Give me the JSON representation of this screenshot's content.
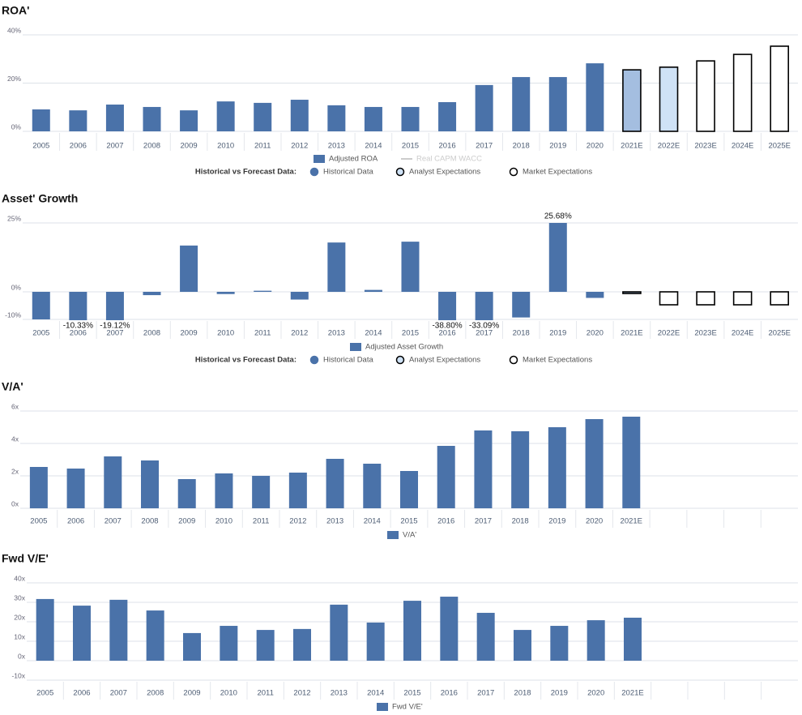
{
  "chart_data": {
    "type": "dashboard",
    "charts": [
      {
        "type": "bar",
        "title": "ROA'",
        "categories": [
          "2005",
          "2006",
          "2007",
          "2008",
          "2009",
          "2010",
          "2011",
          "2012",
          "2013",
          "2014",
          "2015",
          "2016",
          "2017",
          "2018",
          "2019",
          "2020",
          "2021E",
          "2022E",
          "2023E",
          "2024E",
          "2025E"
        ],
        "series": [
          {
            "name": "Adjusted ROA",
            "color": "#4a72a9",
            "values": [
              9.1,
              8.7,
              11.1,
              10.1,
              8.7,
              12.4,
              11.8,
              13.1,
              10.8,
              10.1,
              10.1,
              12.1,
              19.2,
              22.5,
              22.5,
              28.2,
              25.5,
              26.6,
              29.2,
              31.9,
              35.3
            ],
            "colors": [
              "#4a72a9",
              "#4a72a9",
              "#4a72a9",
              "#4a72a9",
              "#4a72a9",
              "#4a72a9",
              "#4a72a9",
              "#4a72a9",
              "#4a72a9",
              "#4a72a9",
              "#4a72a9",
              "#4a72a9",
              "#4a72a9",
              "#4a72a9",
              "#4a72a9",
              "#4a72a9",
              "#a4bee0",
              "#cfe2f6",
              "#ffffff",
              "#ffffff",
              "#ffffff"
            ],
            "outline": [
              false,
              false,
              false,
              false,
              false,
              false,
              false,
              false,
              false,
              false,
              false,
              false,
              false,
              false,
              false,
              false,
              true,
              true,
              true,
              true,
              true
            ]
          }
        ],
        "extra_legend": [
          {
            "name": "Real CAPM WACC",
            "color": "#cccccc"
          }
        ],
        "ylim": [
          0,
          40
        ],
        "yticks": [
          {
            "value": 0,
            "label": "0%"
          },
          {
            "value": 20,
            "label": "20%"
          },
          {
            "value": 40,
            "label": "40%"
          }
        ],
        "grid": true,
        "forecast_legend": {
          "title": "Historical vs Forecast Data:",
          "items": [
            {
              "name": "Historical Data",
              "fill": "#4a72a9",
              "stroke": "#4a72a9"
            },
            {
              "name": "Analyst Expectations",
              "fill": "#cfe2f6",
              "stroke": "#000000"
            },
            {
              "name": "Market Expectations",
              "fill": "#ffffff",
              "stroke": "#000000"
            }
          ]
        }
      },
      {
        "type": "bar",
        "title": "Asset' Growth",
        "categories": [
          "2005",
          "2006",
          "2007",
          "2008",
          "2009",
          "2010",
          "2011",
          "2012",
          "2013",
          "2014",
          "2015",
          "2016",
          "2017",
          "2018",
          "2019",
          "2020",
          "2021E",
          "2022E",
          "2023E",
          "2024E",
          "2025E"
        ],
        "series": [
          {
            "name": "Adjusted Asset Growth",
            "color": "#4a72a9",
            "values": [
              -10.0,
              -10.33,
              -19.12,
              -1.2,
              16.8,
              -0.8,
              0.4,
              -2.8,
              17.9,
              0.7,
              18.2,
              -38.8,
              -33.09,
              -9.3,
              25.68,
              -2.2,
              -0.6,
              -4.7,
              -4.7,
              -4.7,
              -4.7
            ],
            "value_labels": [
              null,
              "-10.33%",
              "-19.12%",
              null,
              null,
              null,
              null,
              null,
              null,
              null,
              null,
              "-38.80%",
              "-33.09%",
              null,
              "25.68%",
              null,
              null,
              null,
              null,
              null,
              null
            ],
            "colors": [
              "#4a72a9",
              "#4a72a9",
              "#4a72a9",
              "#4a72a9",
              "#4a72a9",
              "#4a72a9",
              "#4a72a9",
              "#4a72a9",
              "#4a72a9",
              "#4a72a9",
              "#4a72a9",
              "#4a72a9",
              "#4a72a9",
              "#4a72a9",
              "#4a72a9",
              "#4a72a9",
              "#a4bee0",
              "#ffffff",
              "#ffffff",
              "#ffffff",
              "#ffffff"
            ],
            "outline": [
              false,
              false,
              false,
              false,
              false,
              false,
              false,
              false,
              false,
              false,
              false,
              false,
              false,
              false,
              false,
              false,
              true,
              true,
              true,
              true,
              true
            ]
          }
        ],
        "ylim": [
          -10,
          25
        ],
        "yticks": [
          {
            "value": -10,
            "label": "-10%"
          },
          {
            "value": 0,
            "label": "0%"
          },
          {
            "value": 25,
            "label": "25%"
          }
        ],
        "grid": true,
        "forecast_legend": {
          "title": "Historical vs Forecast Data:",
          "items": [
            {
              "name": "Historical Data",
              "fill": "#4a72a9",
              "stroke": "#4a72a9"
            },
            {
              "name": "Analyst Expectations",
              "fill": "#cfe2f6",
              "stroke": "#000000"
            },
            {
              "name": "Market Expectations",
              "fill": "#ffffff",
              "stroke": "#000000"
            }
          ]
        }
      },
      {
        "type": "bar",
        "title": "V/A'",
        "categories": [
          "2005",
          "2006",
          "2007",
          "2008",
          "2009",
          "2010",
          "2011",
          "2012",
          "2013",
          "2014",
          "2015",
          "2016",
          "2017",
          "2018",
          "2019",
          "2020",
          "2021E",
          null,
          null,
          null,
          null
        ],
        "series": [
          {
            "name": "V/A'",
            "color": "#4a72a9",
            "values": [
              2.55,
              2.45,
              3.2,
              2.95,
              1.8,
              2.15,
              2.0,
              2.2,
              3.05,
              2.75,
              2.3,
              3.85,
              4.8,
              4.75,
              5.0,
              5.5,
              5.65,
              null,
              null,
              null,
              null
            ]
          }
        ],
        "ylim": [
          0,
          6
        ],
        "yticks": [
          {
            "value": 0,
            "label": "0x"
          },
          {
            "value": 2,
            "label": "2x"
          },
          {
            "value": 4,
            "label": "4x"
          },
          {
            "value": 6,
            "label": "6x"
          }
        ],
        "grid": true
      },
      {
        "type": "bar",
        "title": "Fwd V/E'",
        "categories": [
          "2005",
          "2006",
          "2007",
          "2008",
          "2009",
          "2010",
          "2011",
          "2012",
          "2013",
          "2014",
          "2015",
          "2016",
          "2017",
          "2018",
          "2019",
          "2020",
          "2021E",
          null,
          null,
          null,
          null
        ],
        "series": [
          {
            "name": "Fwd V/E'",
            "color": "#4a72a9",
            "values": [
              31.7,
              28.3,
              31.3,
              25.8,
              14.2,
              17.9,
              15.8,
              16.3,
              28.8,
              19.6,
              30.8,
              32.9,
              24.6,
              15.8,
              17.9,
              20.8,
              22.1,
              null,
              null,
              null,
              null
            ]
          }
        ],
        "ylim": [
          -10,
          40
        ],
        "yticks": [
          {
            "value": -10,
            "label": "-10x"
          },
          {
            "value": 0,
            "label": "0x"
          },
          {
            "value": 10,
            "label": "10x"
          },
          {
            "value": 20,
            "label": "20x"
          },
          {
            "value": 30,
            "label": "30x"
          },
          {
            "value": 40,
            "label": "40x"
          }
        ],
        "grid": true
      }
    ]
  }
}
